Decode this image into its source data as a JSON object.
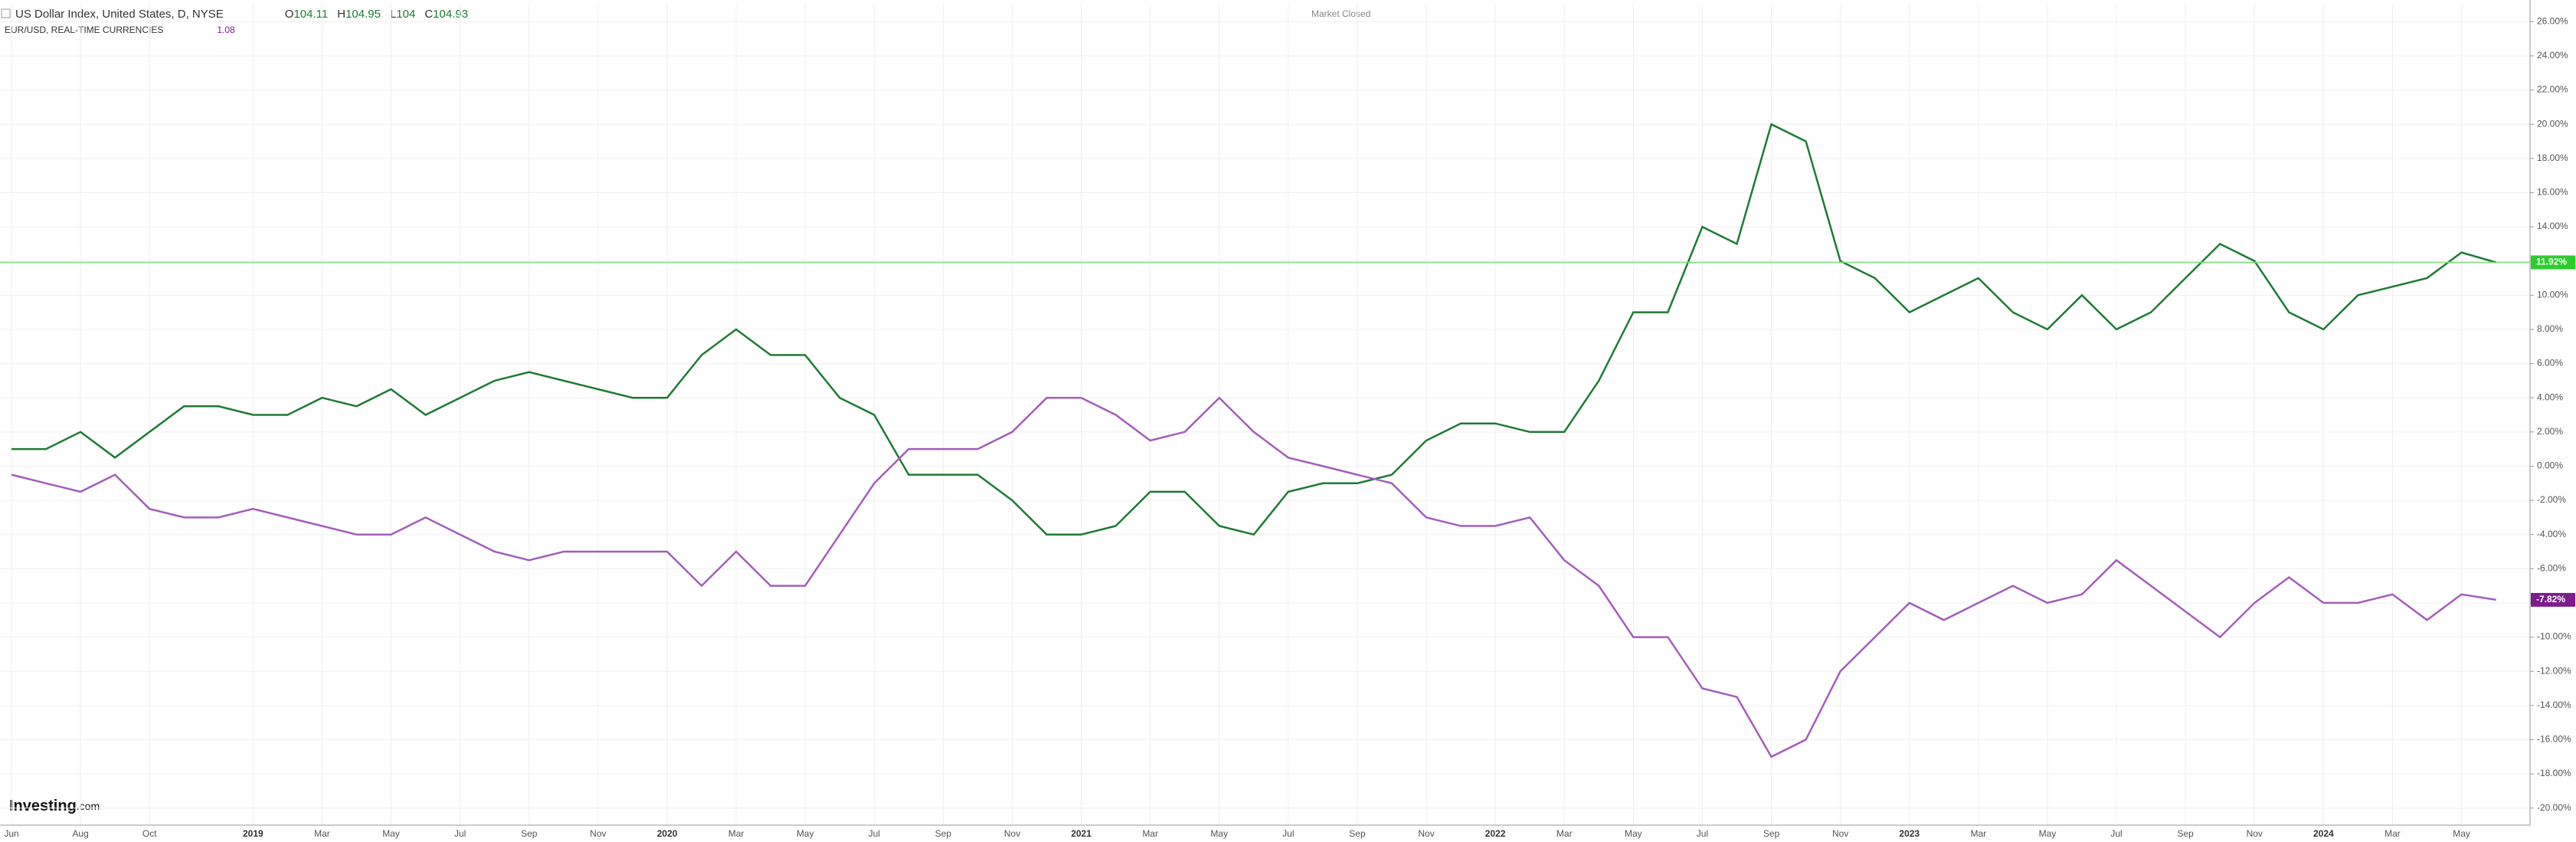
{
  "header": {
    "ohlc": [
      {
        "label": "O",
        "value": 104.11
      },
      {
        "label": "H",
        "value": 104.95
      },
      {
        "label": "L",
        "value": 104.0
      },
      {
        "label": "C",
        "value": 104.93
      }
    ],
    "secondary_price": 1.08,
    "status": "Market Closed",
    "logo": "Investing",
    "logo_suffix": ".com"
  },
  "chart_data": {
    "type": "line",
    "categories": [
      "Jun",
      null,
      "Aug",
      null,
      "Oct",
      null,
      null,
      "2019",
      null,
      "Mar",
      null,
      "May",
      null,
      "Jul",
      null,
      "Sep",
      null,
      "Nov",
      null,
      "2020",
      null,
      "Mar",
      null,
      "May",
      null,
      "Jul",
      null,
      "Sep",
      null,
      "Nov",
      null,
      "2021",
      null,
      "Mar",
      null,
      "May",
      null,
      "Jul",
      null,
      "Sep",
      null,
      "Nov",
      null,
      "2022",
      null,
      "Mar",
      null,
      "May",
      null,
      "Jul",
      null,
      "Sep",
      null,
      "Nov",
      null,
      "2023",
      null,
      "Mar",
      null,
      "May",
      null,
      "Jul",
      null,
      "Sep",
      null,
      "Nov",
      null,
      "2024",
      null,
      "Mar",
      null,
      "May",
      null
    ],
    "series": [
      {
        "name": "US Dollar Index, United States, D, NYSE",
        "color": "#1f7a35",
        "last_value_label": "11.92%",
        "tag_color": "#2ecc2e",
        "values": [
          1,
          1,
          2,
          0.5,
          2,
          3.5,
          3.5,
          3,
          3,
          4,
          3.5,
          4.5,
          3,
          4,
          5,
          5.5,
          5,
          4.5,
          4,
          4,
          6.5,
          8,
          6.5,
          6.5,
          4,
          3,
          -0.5,
          -0.5,
          -0.5,
          -2,
          -4,
          -4,
          -3.5,
          -1.5,
          -1.5,
          -3.5,
          -4,
          -1.5,
          -1,
          -1,
          -0.5,
          1.5,
          2.5,
          2.5,
          2,
          2,
          5,
          9,
          9,
          14,
          13,
          20,
          19,
          12,
          11,
          9,
          10,
          11,
          9,
          8,
          10,
          8,
          9,
          11,
          13,
          12,
          9,
          8,
          10,
          10.5,
          11,
          12.5,
          11.92
        ]
      },
      {
        "name": "EUR/USD, REAL-TIME CURRENCIES",
        "color": "#a35fb8",
        "last_value_label": "-7.82%",
        "tag_color": "#7d1d8c",
        "values": [
          -0.5,
          -1,
          -1.5,
          -0.5,
          -2.5,
          -3,
          -3,
          -2.5,
          -3,
          -3.5,
          -4,
          -4,
          -3,
          -4,
          -5,
          -5.5,
          -5,
          -5,
          -5,
          -5,
          -7,
          -5,
          -7,
          -7,
          -4,
          -1,
          1,
          1,
          1,
          2,
          4,
          4,
          3,
          1.5,
          2,
          4,
          2,
          0.5,
          0,
          -0.5,
          -1,
          -3,
          -3.5,
          -3.5,
          -3,
          -5.5,
          -7,
          -10,
          -10,
          -13,
          -13.5,
          -17,
          -16,
          -12,
          -10,
          -8,
          -9,
          -8,
          -7,
          -8,
          -7.5,
          -5.5,
          -7,
          -8.5,
          -10,
          -8,
          -6.5,
          -8,
          -8,
          -7.5,
          -9,
          -7.5,
          -7.82
        ]
      }
    ],
    "ylim": [
      -21,
      27
    ],
    "yticks": [
      {
        "value": -20,
        "label": "-20.00%"
      },
      {
        "value": -18,
        "label": "-18.00%"
      },
      {
        "value": -16,
        "label": "-16.00%"
      },
      {
        "value": -14,
        "label": "-14.00%"
      },
      {
        "value": -12,
        "label": "-12.00%"
      },
      {
        "value": -10,
        "label": "-10.00%"
      },
      {
        "value": -8,
        "label": "-8.00%"
      },
      {
        "value": -6,
        "label": "-6.00%"
      },
      {
        "value": -4,
        "label": "-4.00%"
      },
      {
        "value": -2,
        "label": "-2.00%"
      },
      {
        "value": 0,
        "label": "0.00%"
      },
      {
        "value": 2,
        "label": "2.00%"
      },
      {
        "value": 4,
        "label": "4.00%"
      },
      {
        "value": 6,
        "label": "6.00%"
      },
      {
        "value": 8,
        "label": "8.00%"
      },
      {
        "value": 10,
        "label": "10.00%"
      },
      {
        "value": 12,
        "label": "12.00%"
      },
      {
        "value": 14,
        "label": "14.00%"
      },
      {
        "value": 16,
        "label": "16.00%"
      },
      {
        "value": 18,
        "label": "18.00%"
      },
      {
        "value": 20,
        "label": "20.00%"
      },
      {
        "value": 22,
        "label": "22.00%"
      },
      {
        "value": 24,
        "label": "24.00%"
      },
      {
        "value": 26,
        "label": "26.00%"
      }
    ],
    "grid": true
  }
}
